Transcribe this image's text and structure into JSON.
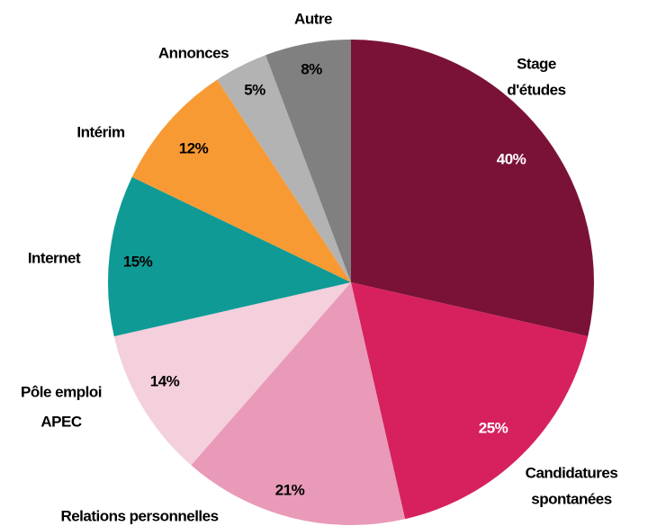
{
  "chart_data": {
    "type": "pie",
    "categories": [
      [
        "Stage",
        "d'études"
      ],
      [
        "Candidatures",
        "spontanées"
      ],
      [
        "Relations personnelles"
      ],
      [
        "Pôle emploi",
        "APEC"
      ],
      [
        "Internet"
      ],
      [
        "Intérim"
      ],
      [
        "Annonces"
      ],
      [
        "Autre"
      ]
    ],
    "values": [
      40,
      25,
      21,
      14,
      15,
      12,
      5,
      8
    ],
    "value_labels": [
      "40%",
      "25%",
      "21%",
      "14%",
      "15%",
      "12%",
      "5%",
      "8%"
    ],
    "colors": [
      "#7a1237",
      "#d6215e",
      "#e99ab8",
      "#f4cfdc",
      "#0f9a96",
      "#f89a33",
      "#b3b3b3",
      "#808080"
    ]
  }
}
